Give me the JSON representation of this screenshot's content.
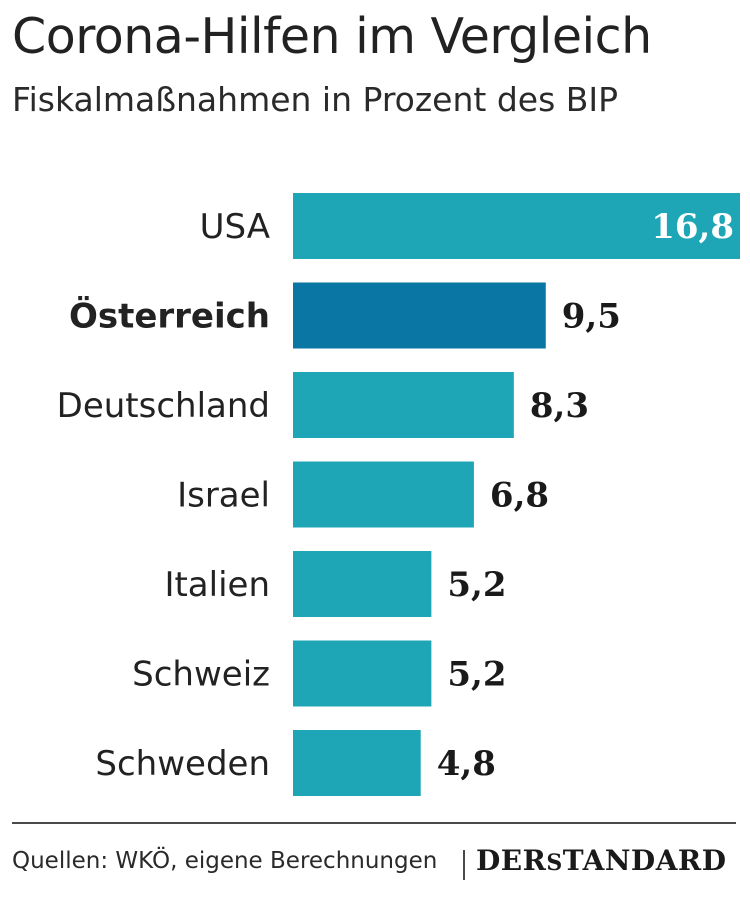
{
  "header": {
    "title": "Corona-Hilfen im Vergleich",
    "subtitle": "Fiskalmaßnahmen in Prozent des BIP"
  },
  "chart_data": {
    "type": "bar",
    "orientation": "horizontal",
    "title": "Corona-Hilfen im Vergleich",
    "subtitle": "Fiskalmaßnahmen in Prozent des BIP",
    "categories": [
      "USA",
      "Österreich",
      "Deutschland",
      "Israel",
      "Italien",
      "Schweiz",
      "Schweden"
    ],
    "values": [
      16.8,
      9.5,
      8.3,
      6.8,
      5.2,
      5.2,
      4.8
    ],
    "value_labels": [
      "16,8",
      "9,5",
      "8,3",
      "6,8",
      "5,2",
      "5,2",
      "4,8"
    ],
    "highlight": "Österreich",
    "colors": {
      "default": "#1ea6b6",
      "highlight": "#0a76a3"
    },
    "xlim": [
      0,
      16.8
    ],
    "grid": false,
    "legend": "none"
  },
  "footer": {
    "source": "Quellen: WKÖ, eigene Berechnungen",
    "brand": "DerStandard"
  }
}
